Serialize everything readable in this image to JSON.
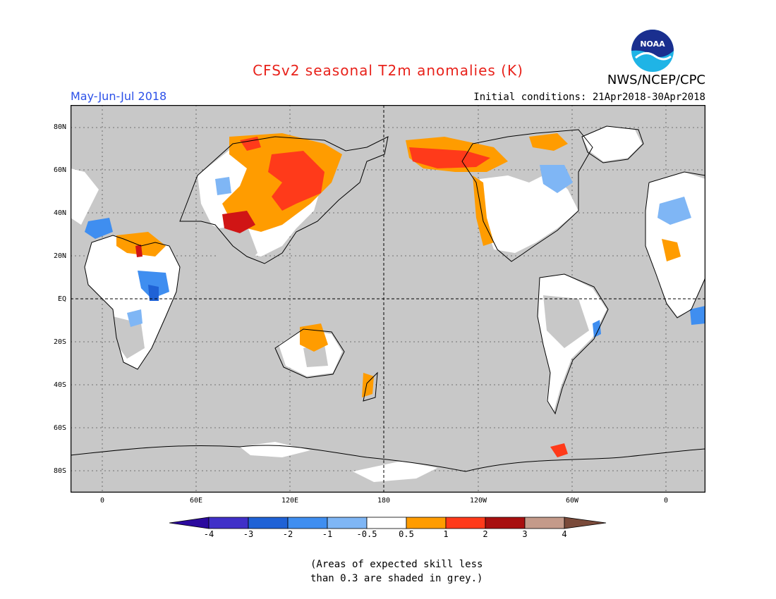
{
  "header": {
    "title": "CFSv2 seasonal T2m anomalies (K)",
    "period": "May-Jun-Jul 2018",
    "initial_conditions": "Initial conditions: 21Apr2018-30Apr2018",
    "agency": "NWS/NCEP/CPC",
    "logo_text": "NOAA"
  },
  "axes": {
    "y_ticks": [
      "80N",
      "60N",
      "40N",
      "20N",
      "EQ",
      "20S",
      "40S",
      "60S",
      "80S"
    ],
    "x_ticks": [
      "0",
      "60E",
      "120E",
      "180",
      "120W",
      "60W",
      "0"
    ]
  },
  "colorbar": {
    "labels": [
      "-4",
      "-3",
      "-2",
      "-1",
      "-0.5",
      "0.5",
      "1",
      "2",
      "3",
      "4"
    ],
    "colors": [
      "#2b0a9e",
      "#4030c8",
      "#1f62d6",
      "#3f8ef0",
      "#7fb6f5",
      "#ffffff",
      "#ff9c00",
      "#ff3a1a",
      "#a80f0f",
      "#c49a8a",
      "#7a4a3a"
    ]
  },
  "legend": {
    "skill_note_line1": "(Areas of expected skill less",
    "skill_note_line2": "than 0.3 are shaded in grey.)"
  },
  "map_colors": {
    "no_skill_grey": "#c8c8c8",
    "land_white": "#ffffff",
    "coastline": "#000000"
  }
}
